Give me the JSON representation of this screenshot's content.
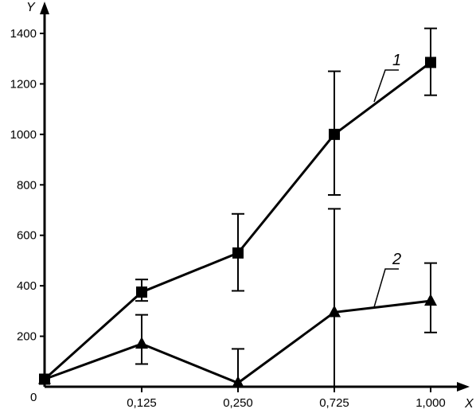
{
  "chart_data": {
    "type": "line",
    "xlabel": "X",
    "ylabel": "Y",
    "categories": [
      "0",
      "0,125",
      "0,250",
      "0,725",
      "1,000"
    ],
    "x_tick_labels": [
      "0,125",
      "0,250",
      "0,725",
      "1,000"
    ],
    "origin_label": "0",
    "y_ticks": [
      200,
      400,
      600,
      800,
      1000,
      1200,
      1400
    ],
    "ylim": [
      0,
      1400
    ],
    "grid": false,
    "legend": "inline labels",
    "series": [
      {
        "name": "1",
        "marker": "square",
        "values": [
          30,
          375,
          530,
          1000,
          1285
        ],
        "err_low": [
          null,
          340,
          380,
          760,
          1155
        ],
        "err_high": [
          null,
          425,
          685,
          1250,
          1420
        ]
      },
      {
        "name": "2",
        "marker": "triangle",
        "values": [
          30,
          170,
          15,
          295,
          340
        ],
        "err_low": [
          null,
          90,
          null,
          0,
          215
        ],
        "err_high": [
          null,
          285,
          150,
          705,
          490
        ]
      }
    ]
  }
}
